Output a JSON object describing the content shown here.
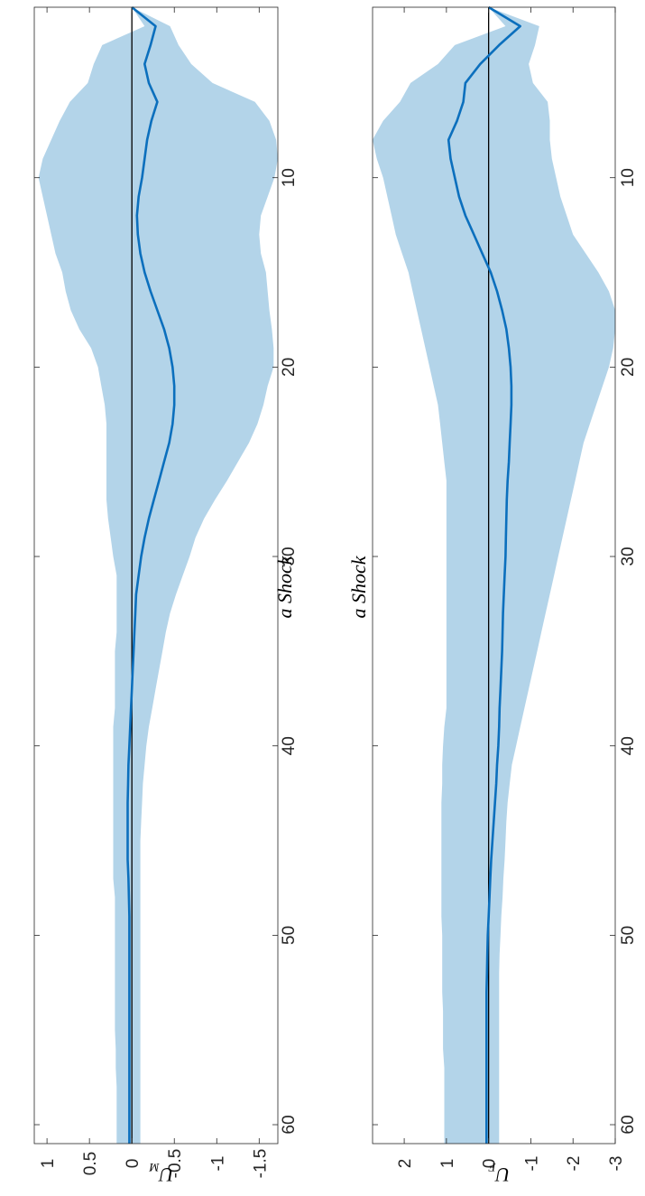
{
  "colors": {
    "band": "#b3d4e9",
    "line": "#0b6fbd",
    "zero_line": "#000000",
    "axes": "#262626"
  },
  "chart_data": [
    {
      "type": "area",
      "title": "a Shock",
      "ylabel": "U",
      "ylabel_sub": "M",
      "x_range": [
        1,
        61
      ],
      "y_range": [
        -1.72,
        1.15
      ],
      "x_ticks": [
        10,
        20,
        30,
        40,
        50,
        60
      ],
      "x_tick_labels": [
        "10",
        "20",
        "30",
        "40",
        "50",
        "60"
      ],
      "y_ticks": [
        1,
        0.5,
        0,
        -0.5,
        -1,
        -1.5
      ],
      "y_tick_labels": [
        "1",
        "0.5",
        "0",
        "-0.5",
        "-1",
        "-1.5"
      ],
      "x": [
        1,
        2,
        3,
        4,
        5,
        6,
        7,
        8,
        9,
        10,
        11,
        12,
        13,
        14,
        15,
        16,
        17,
        18,
        19,
        20,
        21,
        22,
        23,
        24,
        25,
        26,
        27,
        28,
        29,
        30,
        31,
        32,
        33,
        34,
        35,
        36,
        37,
        38,
        39,
        40,
        41,
        42,
        43,
        44,
        45,
        46,
        47,
        48,
        49,
        50,
        51,
        52,
        53,
        54,
        55,
        56,
        57,
        58,
        59,
        60,
        61
      ],
      "series": [
        {
          "values": [
            0.0,
            -0.28,
            -0.22,
            -0.15,
            -0.2,
            -0.3,
            -0.23,
            -0.18,
            -0.15,
            -0.12,
            -0.08,
            -0.06,
            -0.07,
            -0.1,
            -0.15,
            -0.22,
            -0.3,
            -0.38,
            -0.44,
            -0.48,
            -0.5,
            -0.5,
            -0.48,
            -0.44,
            -0.38,
            -0.32,
            -0.26,
            -0.2,
            -0.15,
            -0.11,
            -0.08,
            -0.05,
            -0.04,
            -0.03,
            -0.02,
            -0.01,
            0.0,
            0.01,
            0.02,
            0.03,
            0.04,
            0.045,
            0.05,
            0.05,
            0.05,
            0.05,
            0.04,
            0.035,
            0.03,
            0.03,
            0.03,
            0.03,
            0.03,
            0.03,
            0.03,
            0.03,
            0.03,
            0.03,
            0.03,
            0.03,
            0.03
          ]
        }
      ],
      "band": {
        "upper": [
          0.0,
          -0.15,
          0.35,
          0.45,
          0.52,
          0.73,
          0.85,
          0.95,
          1.05,
          1.1,
          1.05,
          1.0,
          0.95,
          0.9,
          0.82,
          0.78,
          0.72,
          0.62,
          0.48,
          0.4,
          0.36,
          0.32,
          0.3,
          0.3,
          0.3,
          0.3,
          0.3,
          0.28,
          0.25,
          0.22,
          0.18,
          0.18,
          0.18,
          0.18,
          0.2,
          0.2,
          0.2,
          0.2,
          0.22,
          0.22,
          0.22,
          0.22,
          0.22,
          0.22,
          0.22,
          0.22,
          0.22,
          0.2,
          0.2,
          0.2,
          0.2,
          0.2,
          0.2,
          0.2,
          0.2,
          0.19,
          0.19,
          0.18,
          0.18,
          0.18,
          0.18
        ],
        "lower": [
          0.0,
          -0.45,
          -0.55,
          -0.7,
          -0.95,
          -1.45,
          -1.62,
          -1.7,
          -1.72,
          -1.68,
          -1.6,
          -1.52,
          -1.5,
          -1.52,
          -1.58,
          -1.6,
          -1.62,
          -1.65,
          -1.67,
          -1.67,
          -1.6,
          -1.55,
          -1.48,
          -1.38,
          -1.25,
          -1.12,
          -0.98,
          -0.85,
          -0.75,
          -0.68,
          -0.6,
          -0.52,
          -0.45,
          -0.4,
          -0.36,
          -0.32,
          -0.28,
          -0.24,
          -0.2,
          -0.17,
          -0.15,
          -0.13,
          -0.12,
          -0.11,
          -0.1,
          -0.1,
          -0.1,
          -0.1,
          -0.1,
          -0.1,
          -0.1,
          -0.1,
          -0.1,
          -0.1,
          -0.1,
          -0.1,
          -0.1,
          -0.1,
          -0.1,
          -0.1,
          -0.1
        ]
      }
    },
    {
      "type": "area",
      "title": "a Shock",
      "ylabel": "U",
      "ylabel_sub": "F",
      "x_range": [
        1,
        61
      ],
      "y_range": [
        -3,
        2.75
      ],
      "x_ticks": [
        10,
        20,
        30,
        40,
        50,
        60
      ],
      "x_tick_labels": [
        "10",
        "20",
        "30",
        "40",
        "50",
        "60"
      ],
      "y_ticks": [
        2,
        1,
        0,
        -1,
        -2,
        -3
      ],
      "y_tick_labels": [
        "2",
        "1",
        "0",
        "-1",
        "-2",
        "-3"
      ],
      "x": [
        1,
        2,
        3,
        4,
        5,
        6,
        7,
        8,
        9,
        10,
        11,
        12,
        13,
        14,
        15,
        16,
        17,
        18,
        19,
        20,
        21,
        22,
        23,
        24,
        25,
        26,
        27,
        28,
        29,
        30,
        31,
        32,
        33,
        34,
        35,
        36,
        37,
        38,
        39,
        40,
        41,
        42,
        43,
        44,
        45,
        46,
        47,
        48,
        49,
        50,
        51,
        52,
        53,
        54,
        55,
        56,
        57,
        58,
        59,
        60,
        61
      ],
      "series": [
        {
          "values": [
            0.0,
            -0.75,
            -0.25,
            0.2,
            0.55,
            0.6,
            0.75,
            0.95,
            0.9,
            0.8,
            0.7,
            0.55,
            0.35,
            0.15,
            -0.05,
            -0.2,
            -0.32,
            -0.42,
            -0.48,
            -0.52,
            -0.54,
            -0.54,
            -0.52,
            -0.5,
            -0.48,
            -0.45,
            -0.43,
            -0.42,
            -0.41,
            -0.4,
            -0.38,
            -0.36,
            -0.34,
            -0.33,
            -0.32,
            -0.3,
            -0.28,
            -0.26,
            -0.25,
            -0.23,
            -0.2,
            -0.18,
            -0.15,
            -0.12,
            -0.09,
            -0.06,
            -0.04,
            -0.02,
            0.0,
            0.02,
            0.03,
            0.04,
            0.05,
            0.05,
            0.05,
            0.05,
            0.05,
            0.05,
            0.05,
            0.05,
            0.05
          ]
        }
      ],
      "band": {
        "upper": [
          0.0,
          -0.4,
          0.8,
          1.2,
          1.85,
          2.1,
          2.5,
          2.75,
          2.65,
          2.5,
          2.4,
          2.3,
          2.2,
          2.05,
          1.9,
          1.8,
          1.7,
          1.6,
          1.5,
          1.4,
          1.3,
          1.2,
          1.15,
          1.1,
          1.05,
          1.0,
          1.0,
          1.0,
          1.0,
          1.0,
          1.0,
          1.0,
          1.0,
          1.0,
          1.0,
          1.0,
          1.0,
          1.0,
          1.05,
          1.08,
          1.1,
          1.1,
          1.12,
          1.12,
          1.12,
          1.12,
          1.12,
          1.12,
          1.12,
          1.1,
          1.1,
          1.1,
          1.1,
          1.08,
          1.08,
          1.08,
          1.05,
          1.05,
          1.05,
          1.05,
          1.05
        ],
        "lower": [
          0.0,
          -1.2,
          -1.1,
          -0.95,
          -1.05,
          -1.4,
          -1.45,
          -1.45,
          -1.5,
          -1.6,
          -1.7,
          -1.85,
          -2.0,
          -2.3,
          -2.6,
          -2.85,
          -3.0,
          -3.0,
          -2.95,
          -2.85,
          -2.7,
          -2.55,
          -2.4,
          -2.25,
          -2.15,
          -2.05,
          -1.95,
          -1.85,
          -1.75,
          -1.65,
          -1.55,
          -1.45,
          -1.35,
          -1.25,
          -1.15,
          -1.05,
          -0.95,
          -0.85,
          -0.75,
          -0.65,
          -0.55,
          -0.5,
          -0.45,
          -0.42,
          -0.4,
          -0.38,
          -0.35,
          -0.33,
          -0.3,
          -0.28,
          -0.26,
          -0.25,
          -0.25,
          -0.25,
          -0.25,
          -0.25,
          -0.25,
          -0.25,
          -0.25,
          -0.25,
          -0.25
        ]
      }
    }
  ]
}
